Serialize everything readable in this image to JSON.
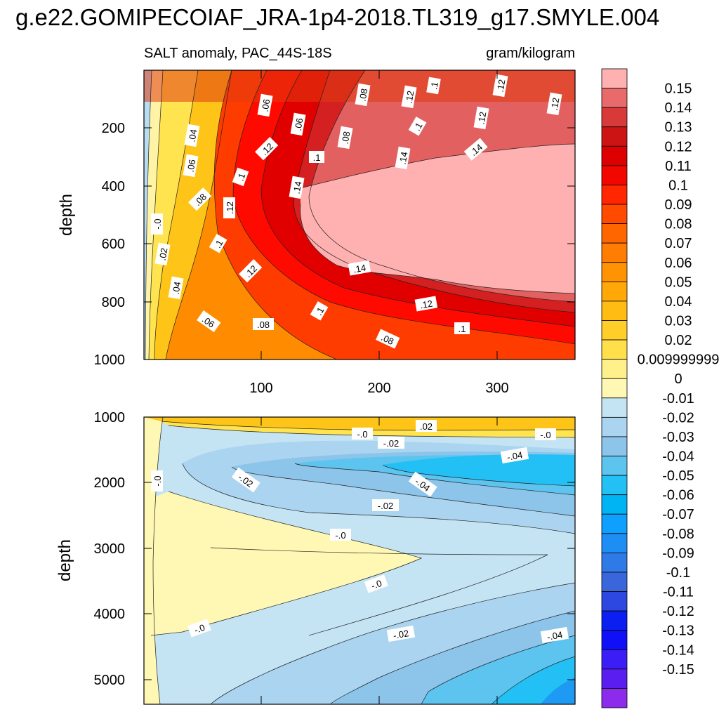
{
  "title": "g.e22.GOMIPECOIAF_JRA-1p4-2018.TL319_g17.SMYLE.004",
  "subtitle_left": "SALT anomaly, PAC_44S-18S",
  "subtitle_right": "gram/kilogram",
  "chart_data": {
    "type": "heatmap",
    "variable": "SALT anomaly",
    "region": "PAC_44S-18S",
    "units": "gram/kilogram",
    "x_ticks": [
      "100",
      "200",
      "300"
    ],
    "xlim": [
      1,
      366
    ],
    "panels": [
      {
        "ylabel": "depth",
        "ylim": [
          1000,
          0
        ],
        "y_ticks": [
          "200",
          "400",
          "600",
          "800",
          "1000"
        ],
        "features": [
          {
            "region": "near-surface, day > 150",
            "value_range": [
              0.1,
              0.15
            ]
          },
          {
            "region": "core depth 330-750, day > 140",
            "value": 0.15
          },
          {
            "region": "x < 15 full column",
            "value_range": [
              0.0,
              0.02
            ]
          }
        ],
        "contour_labels": [
          {
            "text": ".06"
          },
          {
            "text": ".08"
          },
          {
            "text": ".12"
          },
          {
            "text": ".1"
          },
          {
            "text": ".12"
          },
          {
            "text": ".12"
          },
          {
            "text": ".12"
          },
          {
            "text": ".04"
          },
          {
            "text": ".06"
          },
          {
            "text": ".08"
          },
          {
            "text": ".1"
          },
          {
            "text": ".1"
          },
          {
            "text": ".14"
          },
          {
            "text": ".14"
          },
          {
            "text": ".06"
          },
          {
            "text": ".12"
          },
          {
            "text": ".1"
          },
          {
            "text": ".14"
          },
          {
            "text": ".08"
          },
          {
            "text": ".12"
          },
          {
            "text": "-.0"
          },
          {
            "text": ".1"
          },
          {
            "text": ".02"
          },
          {
            "text": ".12"
          },
          {
            "text": ".14"
          },
          {
            "text": ".04"
          },
          {
            "text": ".12"
          },
          {
            "text": ".1"
          },
          {
            "text": ".06"
          },
          {
            "text": ".08"
          },
          {
            "text": ".1"
          },
          {
            "text": ".08"
          }
        ]
      },
      {
        "ylabel": "depth",
        "ylim": [
          5350,
          1000
        ],
        "y_ticks": [
          "1000",
          "2000",
          "3000",
          "4000",
          "5000"
        ],
        "features": [
          {
            "region": "surface band 1000-1250",
            "value_range": [
              0.0,
              0.04
            ]
          },
          {
            "region": "tongue x < 140, depth 2300-4300",
            "value_range": [
              0.0,
              0.01
            ]
          },
          {
            "region": "core depth ~1700, day > 180",
            "value_range": [
              -0.05,
              -0.04
            ]
          },
          {
            "region": "abyss, day > 300",
            "value_range": [
              -0.06,
              -0.04
            ]
          }
        ],
        "contour_labels": [
          {
            "text": "-.0"
          },
          {
            "text": ".02"
          },
          {
            "text": "-.02"
          },
          {
            "text": "-.0"
          },
          {
            "text": "-.04"
          },
          {
            "text": "-.02"
          },
          {
            "text": "-.0"
          },
          {
            "text": "-.04"
          },
          {
            "text": "-.02"
          },
          {
            "text": "-.0"
          },
          {
            "text": "-.0"
          },
          {
            "text": "-.0"
          },
          {
            "text": "-.02"
          },
          {
            "text": "-.04"
          }
        ]
      }
    ],
    "colorbar": {
      "colors": [
        "#8c2bec",
        "#5a1ff0",
        "#3b1ef5",
        "#1010f8",
        "#0a1ff0",
        "#2c48e0",
        "#3a66dc",
        "#2f7ae6",
        "#1e8ef5",
        "#0ea0ff",
        "#00b4f4",
        "#22c0f4",
        "#5dc4f0",
        "#8cc4ea",
        "#aad4f0",
        "#c4e4f4",
        "#fff7b4",
        "#fff08c",
        "#ffe04a",
        "#ffce28",
        "#ffbd14",
        "#ffa808",
        "#ff9304",
        "#ff7d02",
        "#ff6600",
        "#ff4a00",
        "#ff2600",
        "#f20600",
        "#de0000",
        "#cd1414",
        "#d83a3a",
        "#e86a6a",
        "#ffb0b0"
      ],
      "labels": [
        "0.15",
        "0.14",
        "0.13",
        "0.12",
        "0.11",
        "0.1",
        "0.09",
        "0.08",
        "0.07",
        "0.06",
        "0.05",
        "0.04",
        "0.03",
        "0.02",
        "0.009999999",
        "0",
        "-0.01",
        "-0.02",
        "-0.03",
        "-0.04",
        "-0.05",
        "-0.06",
        "-0.07",
        "-0.08",
        "-0.09",
        "-0.1",
        "-0.11",
        "-0.12",
        "-0.13",
        "-0.14",
        "-0.15"
      ]
    }
  }
}
